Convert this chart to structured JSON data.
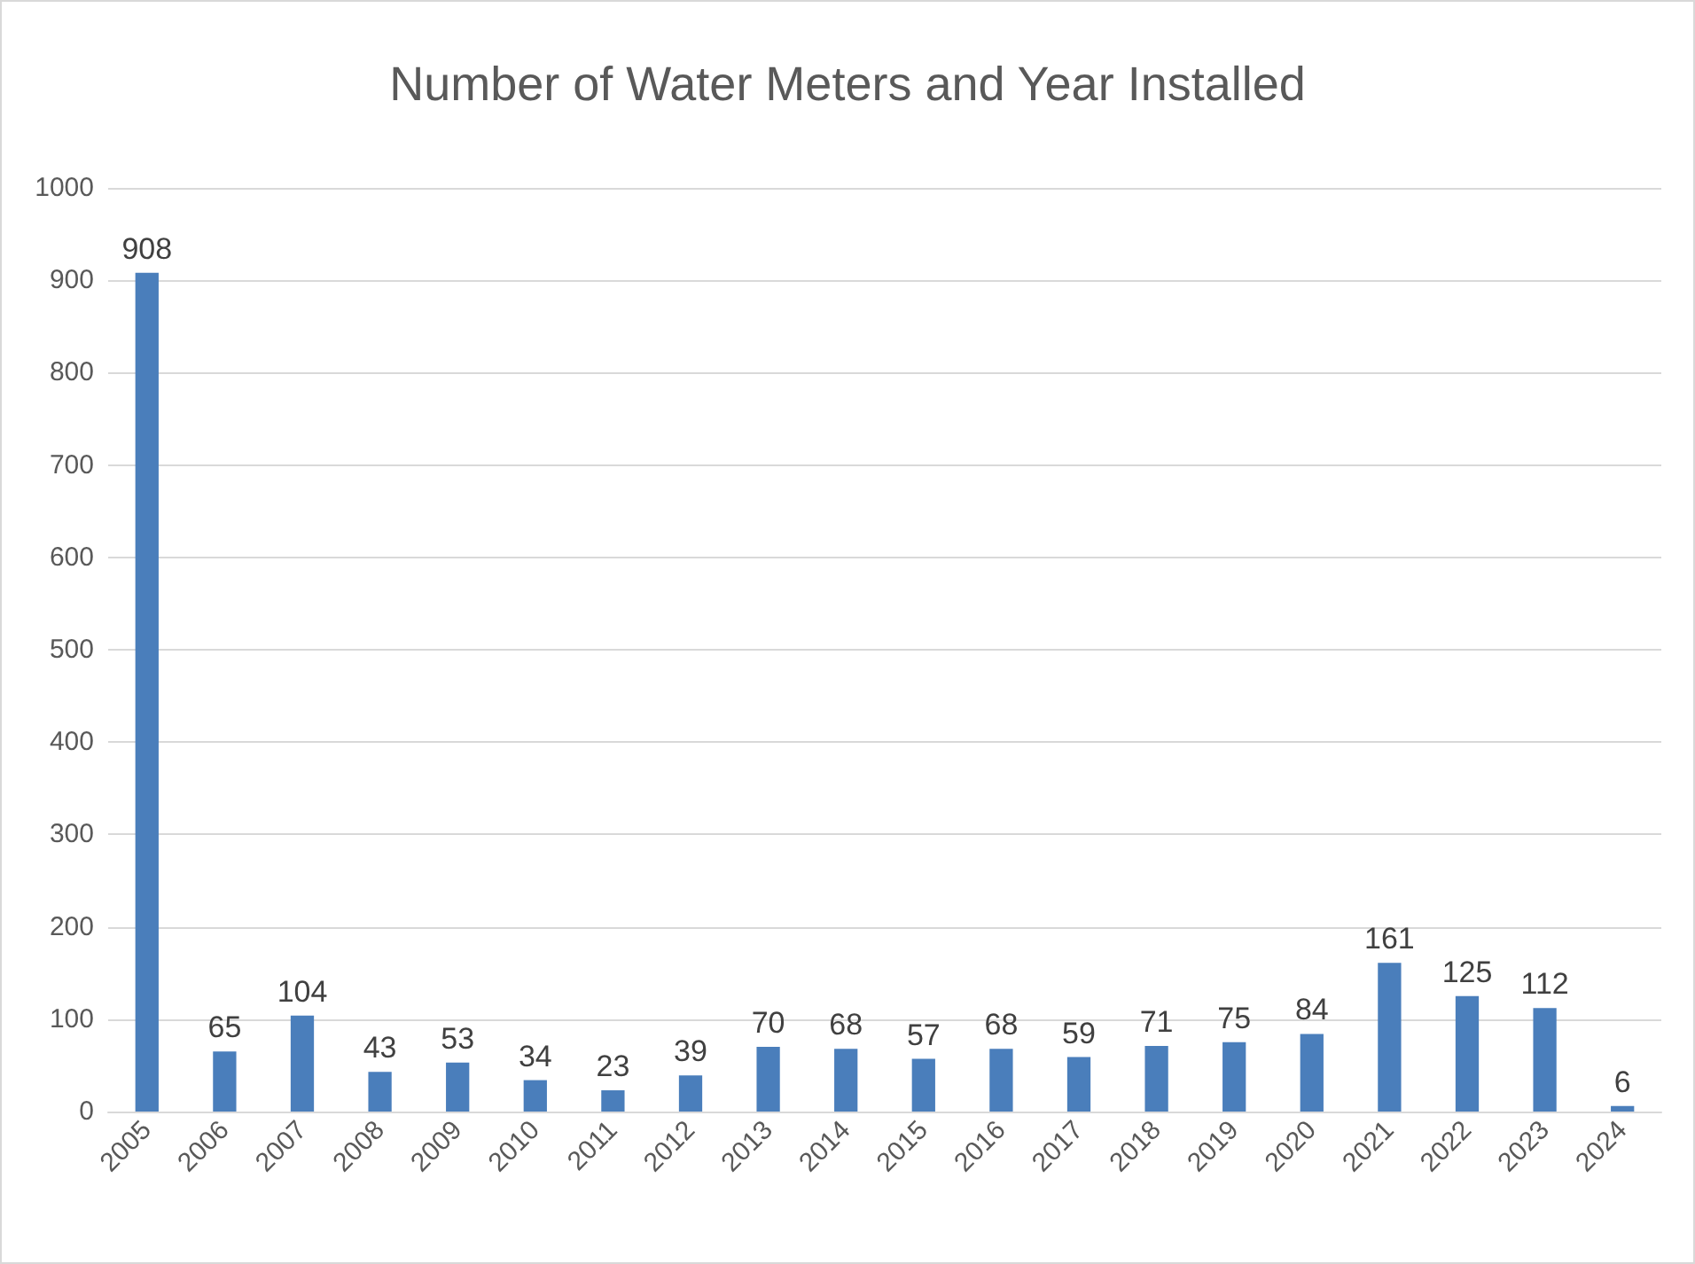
{
  "chart_data": {
    "type": "bar",
    "title": "Number of Water Meters and Year Installed",
    "categories": [
      "2005",
      "2006",
      "2007",
      "2008",
      "2009",
      "2010",
      "2011",
      "2012",
      "2013",
      "2014",
      "2015",
      "2016",
      "2017",
      "2018",
      "2019",
      "2020",
      "2021",
      "2022",
      "2023",
      "2024"
    ],
    "values": [
      908,
      65,
      104,
      43,
      53,
      34,
      23,
      39,
      70,
      68,
      57,
      68,
      59,
      71,
      75,
      84,
      161,
      125,
      112,
      6
    ],
    "color": "#4a7ebb",
    "ylim": [
      0,
      1000
    ],
    "yticks": [
      0,
      100,
      200,
      300,
      400,
      500,
      600,
      700,
      800,
      900,
      1000
    ],
    "grid": "y",
    "data_labels": true
  }
}
